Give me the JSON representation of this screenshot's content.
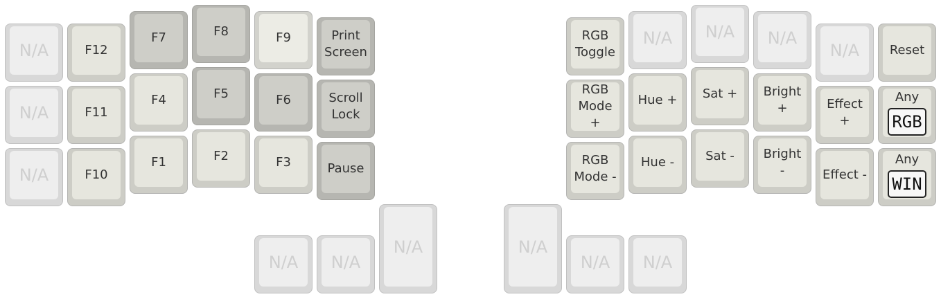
{
  "keys": [
    {
      "label": "N/A",
      "na": true,
      "color": "na"
    },
    {
      "label": "F12",
      "color": "light"
    },
    {
      "label": "F7",
      "color": "mid"
    },
    {
      "label": "F8",
      "color": "mid"
    },
    {
      "label": "F9",
      "color": "pale"
    },
    {
      "label": "Print\nScreen",
      "color": "mid"
    },
    {
      "label": "N/A",
      "na": true,
      "color": "na"
    },
    {
      "label": "F11",
      "color": "light"
    },
    {
      "label": "F4",
      "color": "light"
    },
    {
      "label": "F5",
      "color": "mid"
    },
    {
      "label": "F6",
      "color": "mid"
    },
    {
      "label": "Scroll\nLock",
      "color": "mid"
    },
    {
      "label": "N/A",
      "na": true,
      "color": "na"
    },
    {
      "label": "F10",
      "color": "light"
    },
    {
      "label": "F1",
      "color": "light"
    },
    {
      "label": "F2",
      "color": "light"
    },
    {
      "label": "F3",
      "color": "light"
    },
    {
      "label": "Pause",
      "color": "mid"
    },
    {
      "label": "N/A",
      "na": true,
      "color": "na"
    },
    {
      "label": "N/A",
      "na": true,
      "color": "na"
    },
    {
      "label": "N/A",
      "na": true,
      "color": "na"
    },
    {
      "label": "RGB\nToggle",
      "color": "light"
    },
    {
      "label": "N/A",
      "na": true,
      "color": "na"
    },
    {
      "label": "N/A",
      "na": true,
      "color": "na"
    },
    {
      "label": "N/A",
      "na": true,
      "color": "na"
    },
    {
      "label": "N/A",
      "na": true,
      "color": "na"
    },
    {
      "label": "Reset",
      "color": "light"
    },
    {
      "label": "RGB\nMode\n+",
      "color": "light"
    },
    {
      "label": "Hue +",
      "color": "light"
    },
    {
      "label": "Sat +",
      "color": "light"
    },
    {
      "label": "Bright\n+",
      "color": "light"
    },
    {
      "label": "Effect\n+",
      "color": "light"
    },
    {
      "top": "Any",
      "boxed": "RGB",
      "color": "light"
    },
    {
      "label": "RGB\nMode -",
      "color": "light"
    },
    {
      "label": "Hue -",
      "color": "light"
    },
    {
      "label": "Sat -",
      "color": "light"
    },
    {
      "label": "Bright\n-",
      "color": "light"
    },
    {
      "label": "Effect -",
      "color": "light"
    },
    {
      "top": "Any",
      "boxed": "WIN",
      "color": "light"
    },
    {
      "label": "N/A",
      "na": true,
      "color": "na"
    },
    {
      "label": "N/A",
      "na": true,
      "color": "na"
    },
    {
      "label": "N/A",
      "na": true,
      "color": "na"
    }
  ]
}
